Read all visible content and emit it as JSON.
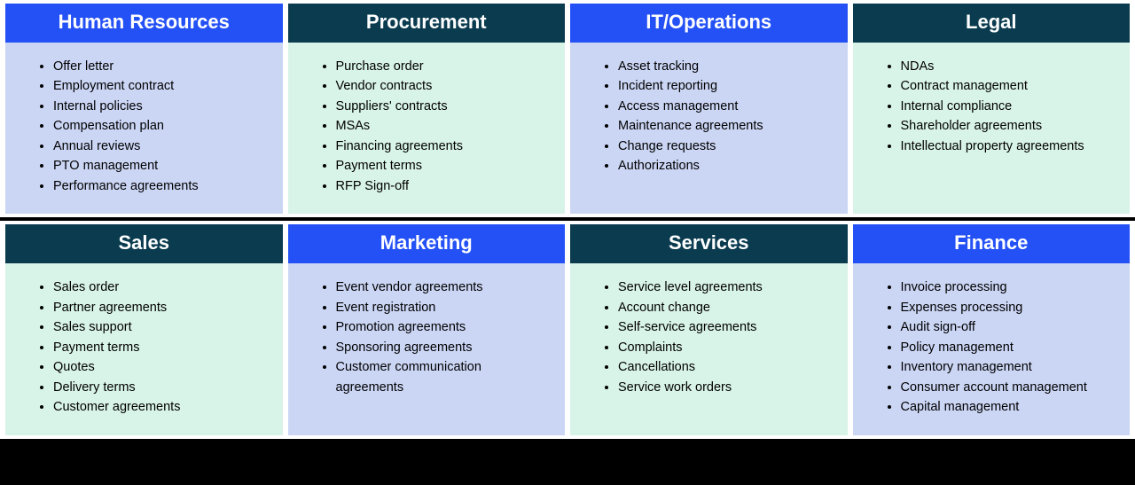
{
  "layout": {
    "rows": 2,
    "cols": 4
  },
  "colors": {
    "header_blue": "#2451f5",
    "header_dark": "#0a3b4f",
    "body_mint": "#d8f3e8",
    "body_lilac": "#cbd6f5",
    "header_text": "#ffffff",
    "body_text": "#000000",
    "page_bg": "#000000",
    "row_bg": "#ffffff"
  },
  "cards": [
    [
      {
        "title": "Human Resources",
        "header_color": "header_blue",
        "body_color": "body_lilac",
        "items": [
          "Offer letter",
          "Employment contract",
          "Internal policies",
          "Compensation plan",
          "Annual reviews",
          "PTO management",
          "Performance agreements"
        ]
      },
      {
        "title": "Procurement",
        "header_color": "header_dark",
        "body_color": "body_mint",
        "items": [
          "Purchase order",
          "Vendor contracts",
          "Suppliers' contracts",
          "MSAs",
          "Financing agreements",
          "Payment terms",
          "RFP Sign-off"
        ]
      },
      {
        "title": "IT/Operations",
        "header_color": "header_blue",
        "body_color": "body_lilac",
        "items": [
          "Asset tracking",
          "Incident reporting",
          "Access management",
          "Maintenance agreements",
          "Change requests",
          "Authorizations"
        ]
      },
      {
        "title": "Legal",
        "header_color": "header_dark",
        "body_color": "body_mint",
        "items": [
          "NDAs",
          "Contract management",
          "Internal compliance",
          "Shareholder agreements",
          "Intellectual property agreements"
        ]
      }
    ],
    [
      {
        "title": "Sales",
        "header_color": "header_dark",
        "body_color": "body_mint",
        "items": [
          "Sales order",
          "Partner agreements",
          "Sales support",
          "Payment terms",
          "Quotes",
          "Delivery terms",
          "Customer agreements"
        ]
      },
      {
        "title": "Marketing",
        "header_color": "header_blue",
        "body_color": "body_lilac",
        "items": [
          "Event vendor agreements",
          "Event registration",
          "Promotion agreements",
          "Sponsoring agreements",
          "Customer communication agreements"
        ]
      },
      {
        "title": "Services",
        "header_color": "header_dark",
        "body_color": "body_mint",
        "items": [
          "Service level agreements",
          "Account change",
          "Self-service agreements",
          "Complaints",
          "Cancellations",
          "Service work orders"
        ]
      },
      {
        "title": "Finance",
        "header_color": "header_blue",
        "body_color": "body_lilac",
        "items": [
          "Invoice processing",
          "Expenses processing",
          "Audit sign-off",
          "Policy management",
          "Inventory management",
          "Consumer account management",
          "Capital management"
        ]
      }
    ]
  ]
}
